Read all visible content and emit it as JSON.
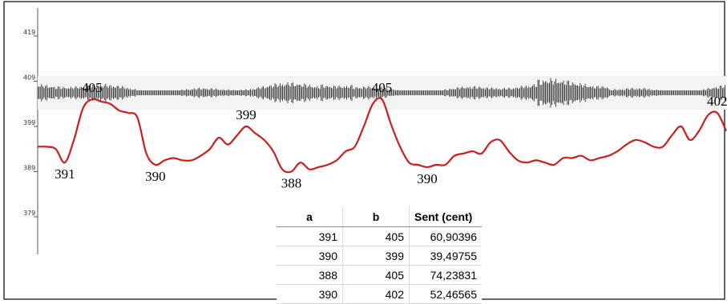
{
  "colors": {
    "pitch_line": "#c8201d",
    "waveform": "#1a1a1a",
    "frame": "#000000",
    "grid": "#cfcfcf"
  },
  "chart_data": [
    {
      "type": "line",
      "title": "",
      "xlabel": "",
      "ylabel": "",
      "ylim": [
        374,
        424
      ],
      "yticks": [
        "419",
        "409",
        "399",
        "389",
        "379"
      ],
      "grid": false,
      "legend": "none",
      "series": [
        {
          "values": [
            394.5,
            394.5,
            394,
            391,
            396,
            403,
            405,
            404.5,
            404,
            402.5,
            402,
            401,
            393,
            390.5,
            391.5,
            392,
            391.5,
            391.5,
            392.5,
            394,
            396.5,
            395,
            397,
            399,
            397.5,
            396,
            393.5,
            389.5,
            389,
            391,
            389.5,
            390,
            390.5,
            391.5,
            393.5,
            394.5,
            399,
            404,
            405,
            399.5,
            394.5,
            391,
            390.5,
            390,
            390.5,
            390.5,
            392.5,
            393,
            393.5,
            393,
            395.5,
            396,
            393.5,
            391.5,
            391,
            391.5,
            391,
            390.5,
            392,
            392,
            392.5,
            391.5,
            392,
            392.5,
            393.5,
            395,
            396,
            395.5,
            394.5,
            394.5,
            397,
            399,
            396,
            398,
            401.5,
            402,
            398
          ]
        }
      ],
      "annotations": [
        {
          "text": "391",
          "x": 3,
          "y": 391
        },
        {
          "text": "405",
          "x": 6,
          "y": 405
        },
        {
          "text": "390",
          "x": 13,
          "y": 390.5
        },
        {
          "text": "399",
          "x": 23,
          "y": 399
        },
        {
          "text": "388",
          "x": 28,
          "y": 389
        },
        {
          "text": "405",
          "x": 38,
          "y": 405
        },
        {
          "text": "390",
          "x": 43,
          "y": 390
        },
        {
          "text": "402",
          "x": 75,
          "y": 402
        }
      ]
    },
    {
      "type": "table",
      "columns": [
        "a",
        "b",
        "Sent (cent)"
      ],
      "rows": [
        [
          "391",
          "405",
          "60,90396"
        ],
        [
          "390",
          "399",
          "39,49755"
        ],
        [
          "388",
          "405",
          "74,23831"
        ],
        [
          "390",
          "402",
          "52,46565"
        ]
      ]
    }
  ]
}
